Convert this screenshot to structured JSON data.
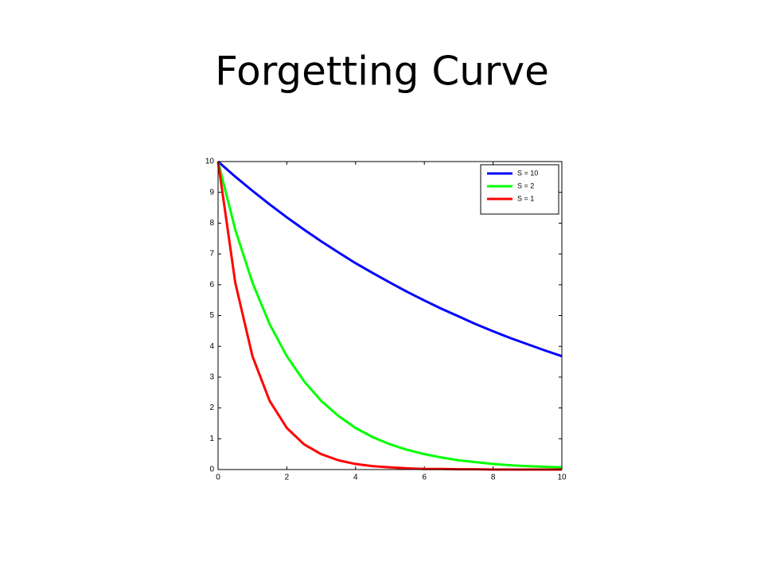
{
  "chart_data": {
    "type": "line",
    "title": "Forgetting Curve",
    "x": [
      0,
      0.5,
      1,
      1.5,
      2,
      2.5,
      3,
      3.5,
      4,
      4.5,
      5,
      5.5,
      6,
      6.5,
      7,
      7.5,
      8,
      8.5,
      9,
      9.5,
      10
    ],
    "series": [
      {
        "name": "S = 10",
        "color": "#0000ff",
        "values": [
          10,
          9.51,
          9.05,
          8.61,
          8.19,
          7.79,
          7.41,
          7.05,
          6.7,
          6.38,
          6.07,
          5.77,
          5.49,
          5.22,
          4.97,
          4.72,
          4.49,
          4.27,
          4.07,
          3.87,
          3.68
        ]
      },
      {
        "name": "S = 2",
        "color": "#00ff00",
        "values": [
          10,
          7.79,
          6.07,
          4.72,
          3.68,
          2.87,
          2.23,
          1.74,
          1.35,
          1.05,
          0.82,
          0.64,
          0.5,
          0.39,
          0.3,
          0.24,
          0.18,
          0.14,
          0.11,
          0.09,
          0.07
        ]
      },
      {
        "name": "S = 1",
        "color": "#ff0000",
        "values": [
          10,
          6.07,
          3.68,
          2.23,
          1.35,
          0.82,
          0.5,
          0.3,
          0.18,
          0.11,
          0.07,
          0.04,
          0.02,
          0.02,
          0.01,
          0.01,
          0,
          0,
          0,
          0,
          0
        ]
      }
    ],
    "xlim": [
      0,
      10
    ],
    "xticks": [
      0,
      2,
      4,
      6,
      8,
      10
    ],
    "ylim": [
      0,
      10
    ],
    "yticks": [
      0,
      1,
      2,
      3,
      4,
      5,
      6,
      7,
      8,
      9,
      10
    ],
    "grid": false,
    "legend": "upper-right"
  }
}
